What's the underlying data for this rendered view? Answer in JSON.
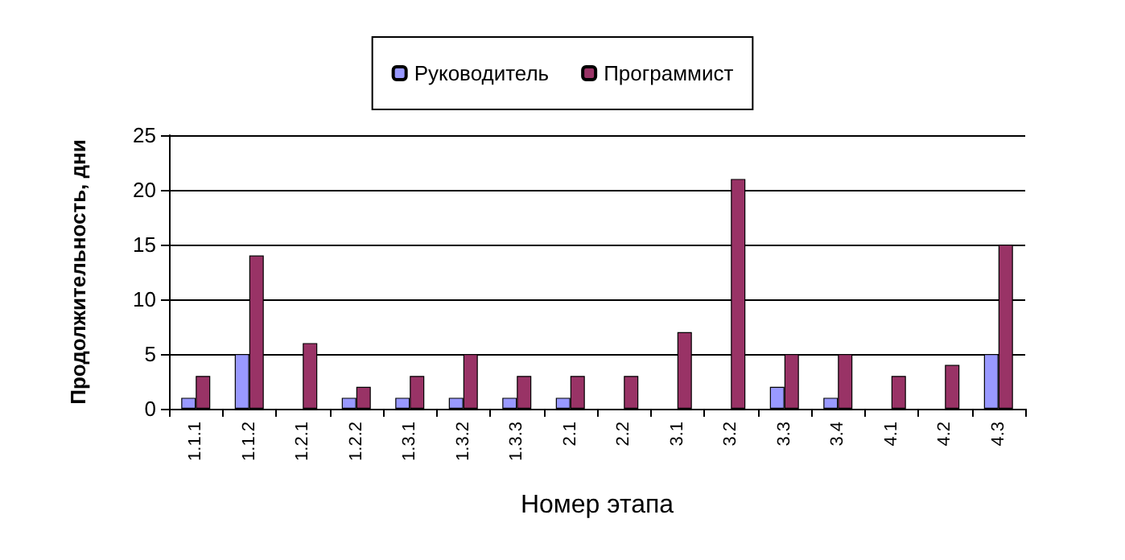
{
  "chart_data": {
    "type": "bar",
    "xlabel": "Номер этапа",
    "ylabel": "Продолжительность, дни",
    "categories": [
      "1.1.1",
      "1.1.2",
      "1.2.1",
      "1.2.2",
      "1.3.1",
      "1.3.2",
      "1.3.3",
      "2.1",
      "2.2",
      "3.1",
      "3.2",
      "3.3",
      "3.4",
      "4.1",
      "4.2",
      "4.3"
    ],
    "series": [
      {
        "name": "Руководитель",
        "color": "#9999ff",
        "values": [
          1,
          5,
          0,
          1,
          1,
          1,
          1,
          1,
          0,
          0,
          0,
          2,
          1,
          0,
          0,
          5
        ]
      },
      {
        "name": "Программист",
        "color": "#993366",
        "values": [
          3,
          14,
          6,
          2,
          3,
          5,
          3,
          3,
          3,
          7,
          21,
          5,
          5,
          3,
          4,
          15
        ]
      }
    ],
    "ylim": [
      0,
      25
    ],
    "yticks": [
      0,
      5,
      10,
      15,
      20,
      25
    ],
    "grid": "y",
    "legend": "top"
  }
}
